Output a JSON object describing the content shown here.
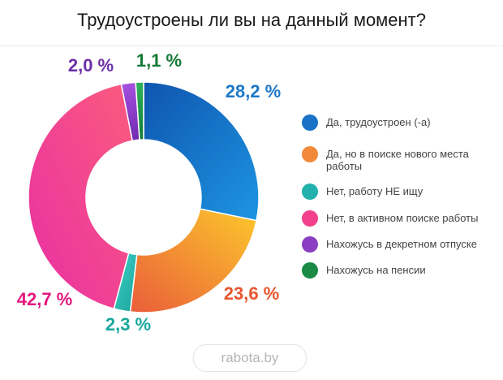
{
  "chart_data": {
    "type": "pie",
    "title": "Трудоустроены ли вы на данный момент?",
    "subtype": "donut",
    "categories": [
      "Да, трудоустроен (-а)",
      "Да, но в поиске нового места работы",
      "Нет, работу НЕ ищу",
      "Нет, в активном поиске работы",
      "Нахожусь в декретном отпуске",
      "Нахожусь на пенсии"
    ],
    "values": [
      28.2,
      23.6,
      2.3,
      42.7,
      2.0,
      1.1
    ],
    "value_labels": [
      "28,2 %",
      "23,6 %",
      "2,3 %",
      "42,7 %",
      "2,0 %",
      "1,1 %"
    ],
    "legend_position": "right"
  },
  "legend": [
    {
      "label": "Да, трудоустроен (-а)",
      "color": "#1a72c7"
    },
    {
      "label": "Да, но в поиске нового места работы",
      "color": "#f08a3a"
    },
    {
      "label": "Нет, работу НЕ ищу",
      "color": "#22b1ad"
    },
    {
      "label": "Нет, в активном поиске работы",
      "color": "#f2408c"
    },
    {
      "label": "Нахожусь в декретном отпуске",
      "color": "#8a3fc2"
    },
    {
      "label": "Нахожусь на пенсии",
      "color": "#1b8a45"
    }
  ],
  "colors": {
    "slice_employed": [
      "#0f55b0",
      "#1d95e0"
    ],
    "slice_searching_new": [
      "#fcc82c",
      "#ea5d3a"
    ],
    "slice_not_searching": [
      "#3ed1c9",
      "#1aa39a"
    ],
    "slice_active_search": [
      "#fb5b7e",
      "#e82fa4"
    ],
    "slice_maternity": [
      "#a74fe0",
      "#6e2bb0"
    ],
    "slice_retired": [
      "#2fb35b",
      "#137a3a"
    ],
    "label_employed": "#1d78c7",
    "label_searching_new": "#e8552e",
    "label_not_searching": "#18a89c",
    "label_active_search": "#e3177e",
    "label_maternity": "#6b2fa8",
    "label_retired": "#157a36"
  },
  "source": "rabota.by"
}
